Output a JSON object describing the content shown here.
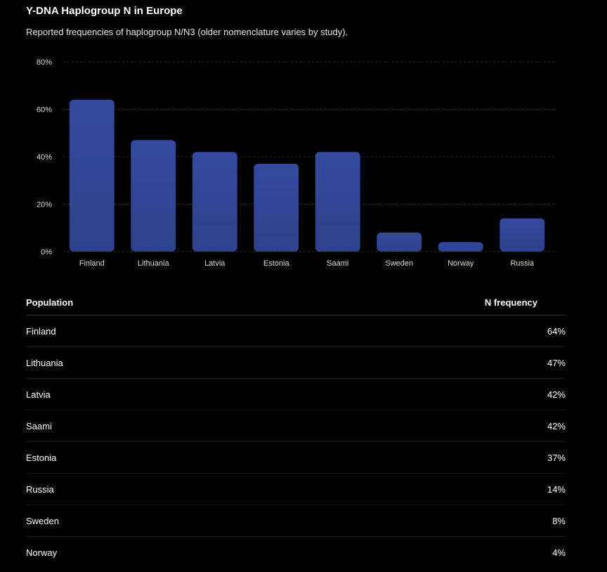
{
  "header": {
    "title": "Y-DNA Haplogroup N in Europe",
    "subtitle": "Reported frequencies of haplogroup N/N3 (older nomenclature varies by study)."
  },
  "chart_data": {
    "type": "bar",
    "categories": [
      "Finland",
      "Lithuania",
      "Latvia",
      "Estonia",
      "Saami",
      "Sweden",
      "Norway",
      "Russia"
    ],
    "values": [
      64,
      47,
      42,
      37,
      42,
      8,
      4,
      14
    ],
    "yticks": [
      "0%",
      "20%",
      "40%",
      "60%",
      "80%"
    ],
    "ylim": [
      0,
      80
    ],
    "grid": true,
    "bar_color": "#33469b",
    "xlabel": "",
    "ylabel": ""
  },
  "table": {
    "headers": {
      "population": "Population",
      "frequency": "N frequency"
    },
    "rows": [
      {
        "population": "Finland",
        "frequency": "64%"
      },
      {
        "population": "Lithuania",
        "frequency": "47%"
      },
      {
        "population": "Latvia",
        "frequency": "42%"
      },
      {
        "population": "Saami",
        "frequency": "42%"
      },
      {
        "population": "Estonia",
        "frequency": "37%"
      },
      {
        "population": "Russia",
        "frequency": "14%"
      },
      {
        "population": "Sweden",
        "frequency": "8%"
      },
      {
        "population": "Norway",
        "frequency": "4%"
      }
    ]
  }
}
